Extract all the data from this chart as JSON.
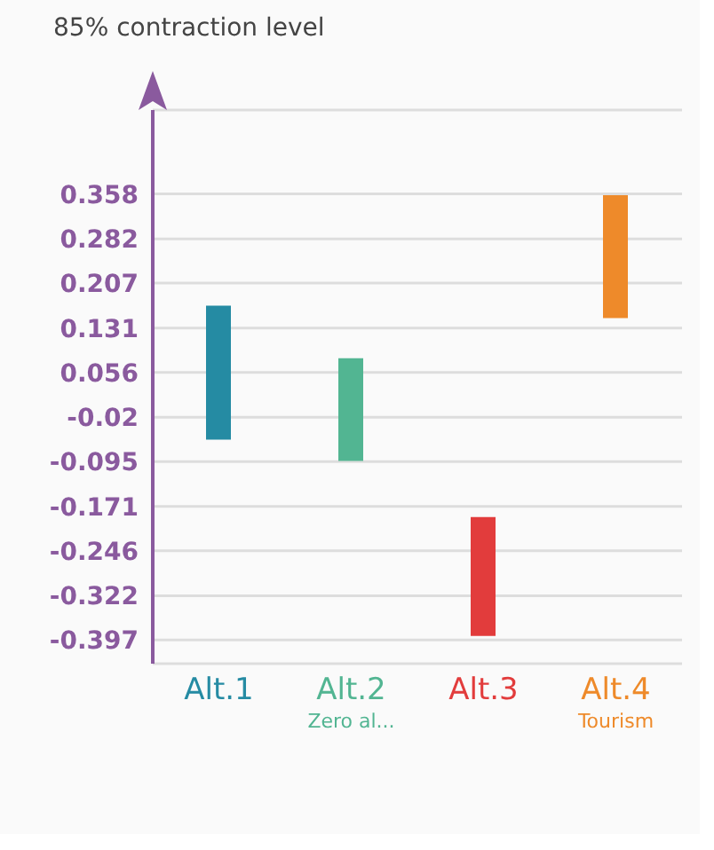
{
  "chart_data": {
    "type": "bar",
    "ylabel": "85% contraction level",
    "categories": [
      "Alt.1",
      "Alt.2\nZero al...",
      "Alt.3",
      "Alt.4\nTourism"
    ],
    "base": [
      -0.058,
      -0.094,
      -0.39,
      0.148
    ],
    "values": [
      0.227,
      0.174,
      0.201,
      0.208
    ],
    "colors": [
      "#258ba3",
      "#52b592",
      "#e23c3c",
      "#ee8a2a"
    ],
    "ylim": [
      -0.437,
      0.5
    ],
    "yticks": [
      0.358,
      0.282,
      0.207,
      0.131,
      0.056,
      -0.02,
      -0.095,
      -0.171,
      -0.246,
      -0.322,
      -0.397
    ],
    "grid": "y"
  }
}
